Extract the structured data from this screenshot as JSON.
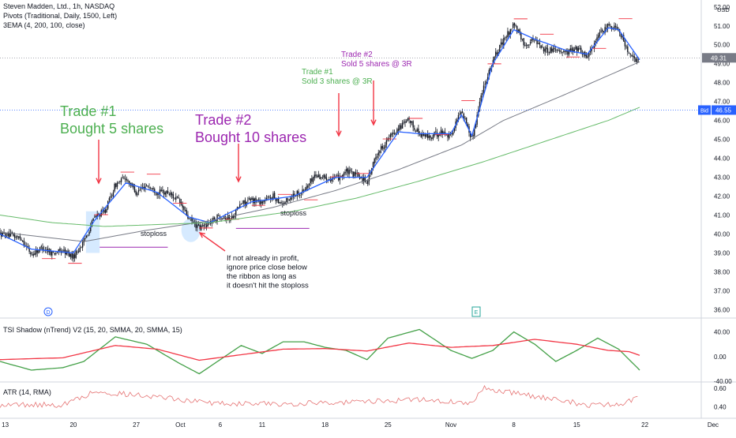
{
  "header": {
    "symbol_line": "Steven Madden, Ltd., 1h, NASDAQ",
    "pivots_line": "Pivots (Traditional, Daily, 1500, Left)",
    "ema_line": "3EMA (4, 200, 100, close)"
  },
  "panes": {
    "tsi_label": "TSI Shadow (nTrend) V2 (15, 20, SMMA, 20, SMMA, 15)",
    "atr_label": "ATR (14, RMA)"
  },
  "colors": {
    "candle": "#131722",
    "ema_fast": "#2962ff",
    "ema_slow": "#787b86",
    "ema_long": "#66bb6a",
    "trade1": "#4caf50",
    "trade2": "#9c27b0",
    "arrow": "#f23645",
    "tsi_line": "#43a047",
    "tsi_signal": "#f23645",
    "atr": "#e57373",
    "pivot": "#f23645",
    "highlight": "#cfe6ff"
  },
  "events": {
    "dividend": "D",
    "earnings": "E"
  },
  "chart_data": [
    {
      "type": "candlestick",
      "title": "Steven Madden, Ltd., 1h, NASDAQ",
      "y_unit": "USD",
      "ylim": [
        35.6,
        52.2
      ],
      "y_ticks": [
        "52.00",
        "51.00",
        "50.00",
        "49.00",
        "48.00",
        "47.00",
        "46.00",
        "45.00",
        "44.00",
        "43.00",
        "42.00",
        "41.00",
        "40.00",
        "39.00",
        "38.00",
        "37.00",
        "36.00"
      ],
      "x_ticks": [
        "13",
        "20",
        "27",
        "Oct",
        "6",
        "11",
        "18",
        "25",
        "Nov",
        "8",
        "15",
        "22",
        "Dec"
      ],
      "price_anchors": [
        [
          0,
          40.0
        ],
        [
          2,
          39.8
        ],
        [
          3,
          38.9
        ],
        [
          4,
          39.3
        ],
        [
          5,
          39.0
        ],
        [
          6,
          39.1
        ],
        [
          7,
          38.8
        ],
        [
          8,
          39.6
        ],
        [
          9,
          40.9
        ],
        [
          10,
          41.2
        ],
        [
          11,
          42.6
        ],
        [
          12,
          43.0
        ],
        [
          13,
          42.2
        ],
        [
          14,
          42.6
        ],
        [
          15,
          42.2
        ],
        [
          16,
          42.2
        ],
        [
          17,
          41.8
        ],
        [
          18,
          40.8
        ],
        [
          19,
          40.3
        ],
        [
          20,
          40.6
        ],
        [
          21,
          41.0
        ],
        [
          22,
          40.8
        ],
        [
          23,
          41.6
        ],
        [
          24,
          41.8
        ],
        [
          25,
          41.7
        ],
        [
          26,
          42.0
        ],
        [
          27,
          41.6
        ],
        [
          28,
          42.1
        ],
        [
          29,
          42.3
        ],
        [
          30,
          43.1
        ],
        [
          31,
          43.0
        ],
        [
          32,
          42.9
        ],
        [
          33,
          43.3
        ],
        [
          34,
          43.1
        ],
        [
          35,
          42.8
        ],
        [
          36,
          44.3
        ],
        [
          37,
          45.0
        ],
        [
          38,
          45.6
        ],
        [
          39,
          46.0
        ],
        [
          40,
          45.3
        ],
        [
          41,
          45.1
        ],
        [
          42,
          45.4
        ],
        [
          43,
          45.2
        ],
        [
          44,
          46.6
        ],
        [
          45,
          45.0
        ],
        [
          46,
          47.6
        ],
        [
          47,
          49.2
        ],
        [
          48,
          50.2
        ],
        [
          49,
          51.1
        ],
        [
          50,
          50.0
        ],
        [
          51,
          50.3
        ],
        [
          52,
          49.7
        ],
        [
          53,
          49.8
        ],
        [
          54,
          49.6
        ],
        [
          55,
          49.8
        ],
        [
          56,
          49.4
        ],
        [
          57,
          50.4
        ],
        [
          58,
          51.0
        ],
        [
          59,
          50.9
        ],
        [
          60,
          49.4
        ],
        [
          61,
          49.1
        ]
      ],
      "series": [
        {
          "name": "EMA 4",
          "anchors": [
            [
              0,
              40.0
            ],
            [
              3,
              39.2
            ],
            [
              7,
              39.0
            ],
            [
              9,
              40.7
            ],
            [
              12,
              42.7
            ],
            [
              15,
              42.2
            ],
            [
              18,
              40.9
            ],
            [
              20,
              40.6
            ],
            [
              24,
              41.7
            ],
            [
              28,
              42.0
            ],
            [
              32,
              43.0
            ],
            [
              35,
              43.0
            ],
            [
              38,
              45.4
            ],
            [
              40,
              45.3
            ],
            [
              43,
              45.3
            ],
            [
              44,
              46.3
            ],
            [
              45,
              45.2
            ],
            [
              47,
              49.0
            ],
            [
              49,
              50.8
            ],
            [
              51,
              50.3
            ],
            [
              54,
              49.7
            ],
            [
              56,
              49.5
            ],
            [
              58,
              50.9
            ],
            [
              59,
              50.8
            ],
            [
              61,
              49.2
            ]
          ]
        },
        {
          "name": "EMA 100",
          "anchors": [
            [
              0,
              40.1
            ],
            [
              8,
              39.6
            ],
            [
              14,
              40.2
            ],
            [
              20,
              40.7
            ],
            [
              26,
              41.4
            ],
            [
              32,
              42.3
            ],
            [
              38,
              43.4
            ],
            [
              44,
              44.7
            ],
            [
              48,
              46.0
            ],
            [
              54,
              47.4
            ],
            [
              61,
              49.1
            ]
          ]
        },
        {
          "name": "EMA 200",
          "anchors": [
            [
              0,
              41.0
            ],
            [
              5,
              40.6
            ],
            [
              10,
              40.4
            ],
            [
              20,
              40.6
            ],
            [
              28,
              41.2
            ],
            [
              34,
              41.9
            ],
            [
              40,
              42.8
            ],
            [
              46,
              43.8
            ],
            [
              52,
              44.9
            ],
            [
              58,
              46.0
            ],
            [
              61,
              46.7
            ]
          ]
        }
      ],
      "price_labels": {
        "last": "49.31",
        "bid_tag": "Bid",
        "bid": "46.55"
      },
      "annotations": {
        "trade1_title": "Trade #1",
        "trade1_body": "Bought 5 shares",
        "trade2_title": "Trade #2",
        "trade2_body": "Bought 10 shares",
        "sell1_title": "Trade #1",
        "sell1_body": "Sold 3 shares @ 3R",
        "sell2_title": "Trade #2",
        "sell2_body": "Sold 5 shares @ 3R",
        "stoploss1": "stoploss",
        "stoploss2": "stoploss",
        "note": [
          "If not already in profit,",
          "ignore price close below",
          "the ribbon as long as",
          "it doesn't hit the stoploss"
        ]
      }
    },
    {
      "type": "line",
      "title": "TSI Shadow (nTrend) V2 (15, 20, SMMA, 20, SMMA, 15)",
      "ylim": [
        -40,
        60
      ],
      "y_ticks": [
        "40.00",
        "0.00",
        "-40.00"
      ],
      "series": [
        {
          "name": "TSI",
          "anchors": [
            [
              0,
              -8
            ],
            [
              3,
              -22
            ],
            [
              6,
              -18
            ],
            [
              8,
              -8
            ],
            [
              11,
              32
            ],
            [
              14,
              20
            ],
            [
              17,
              -10
            ],
            [
              19,
              -28
            ],
            [
              21,
              -5
            ],
            [
              23,
              18
            ],
            [
              25,
              5
            ],
            [
              27,
              24
            ],
            [
              29,
              24
            ],
            [
              31,
              15
            ],
            [
              33,
              10
            ],
            [
              35,
              -5
            ],
            [
              37,
              30
            ],
            [
              40,
              44
            ],
            [
              43,
              10
            ],
            [
              45,
              -3
            ],
            [
              47,
              10
            ],
            [
              49,
              40
            ],
            [
              51,
              20
            ],
            [
              53,
              -8
            ],
            [
              55,
              10
            ],
            [
              57,
              30
            ],
            [
              59,
              12
            ],
            [
              61,
              -22
            ]
          ]
        },
        {
          "name": "Signal",
          "anchors": [
            [
              0,
              -5
            ],
            [
              6,
              -2
            ],
            [
              11,
              18
            ],
            [
              15,
              12
            ],
            [
              19,
              -6
            ],
            [
              23,
              3
            ],
            [
              27,
              12
            ],
            [
              31,
              13
            ],
            [
              35,
              9
            ],
            [
              39,
              22
            ],
            [
              43,
              15
            ],
            [
              47,
              18
            ],
            [
              51,
              28
            ],
            [
              55,
              20
            ],
            [
              58,
              10
            ],
            [
              60,
              8
            ],
            [
              61,
              2
            ]
          ]
        }
      ]
    },
    {
      "type": "line",
      "title": "ATR (14, RMA)",
      "ylim": [
        0.3,
        0.65
      ],
      "y_ticks": [
        "0.60",
        "0.40"
      ],
      "series": [
        {
          "name": "ATR",
          "anchors": [
            [
              0,
              0.42
            ],
            [
              6,
              0.42
            ],
            [
              9,
              0.56
            ],
            [
              14,
              0.52
            ],
            [
              20,
              0.44
            ],
            [
              26,
              0.43
            ],
            [
              34,
              0.45
            ],
            [
              40,
              0.48
            ],
            [
              45,
              0.43
            ],
            [
              46,
              0.6
            ],
            [
              50,
              0.53
            ],
            [
              56,
              0.42
            ],
            [
              59,
              0.42
            ],
            [
              61,
              0.5
            ]
          ]
        }
      ]
    }
  ]
}
